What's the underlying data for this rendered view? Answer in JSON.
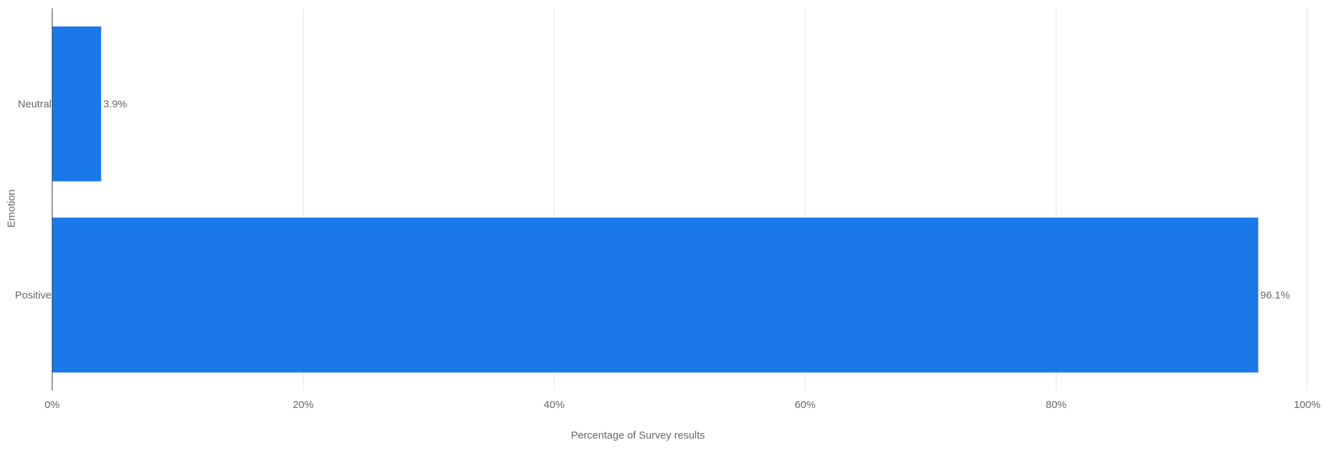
{
  "chart_data": {
    "type": "bar",
    "orientation": "horizontal",
    "categories": [
      "Neutral",
      "Positive"
    ],
    "values": [
      3.9,
      96.1
    ],
    "data_labels": [
      "3.9%",
      "96.1%"
    ],
    "title": "",
    "xlabel": "Percentage of Survey results",
    "ylabel": "Emotion",
    "xlim": [
      0,
      100
    ],
    "x_ticks": [
      0,
      20,
      40,
      60,
      80,
      100
    ],
    "x_tick_labels": [
      "0%",
      "20%",
      "40%",
      "60%",
      "80%",
      "100%"
    ],
    "grid": true,
    "legend": "none",
    "bar_color": "#1a78e8"
  }
}
